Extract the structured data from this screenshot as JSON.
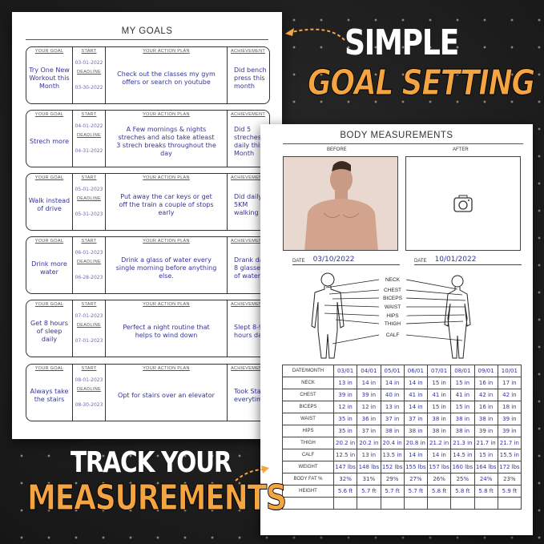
{
  "headline_top": {
    "line1": "SIMPLE",
    "line2": "GOAL SETTING"
  },
  "headline_bottom": {
    "line1": "TRACK YOUR",
    "line2": "MEASUREMENTS"
  },
  "colors": {
    "accent": "#f5a442",
    "background": "#1d1d1d",
    "handwriting": "#34349a"
  },
  "goals_page": {
    "title": "MY GOALS",
    "headers": {
      "goal": "YOUR GOAL",
      "start": "START",
      "deadline": "DEADLINE",
      "plan": "YOUR ACTION PLAN",
      "achievement": "ACHIEVEMENT"
    },
    "rows": [
      {
        "goal": "Try One New Workout this Month",
        "start": "03-01-2022",
        "deadline": "03-30-2022",
        "plan": "Check out the classes my gym offers or search on youtube",
        "achievement": "Did bench press this month"
      },
      {
        "goal": "Strech more",
        "start": "04-01-2022",
        "deadline": "04-31-2022",
        "plan": "A Few mornings & nights streches and also take atleast 3 strech breaks throughout the day",
        "achievement": "Did 5 streches daily this Month"
      },
      {
        "goal": "Walk instead of drive",
        "start": "05-01-2023",
        "deadline": "05-31-2023",
        "plan": "Put away the car keys or get off the train a couple of stops early",
        "achievement": "Did daily 5KM walking"
      },
      {
        "goal": "Drink more water",
        "start": "06-01-2023",
        "deadline": "06-28-2023",
        "plan": "Drink a glass of water every single morning before anything else.",
        "achievement": "Drank da 8 glasses of water"
      },
      {
        "goal": "Get 8 hours of sleep daily",
        "start": "07-01-2023",
        "deadline": "07-01-2023",
        "plan": "Perfect a night routine that helps to wind down",
        "achievement": "Slept 8-9 hours dail"
      },
      {
        "goal": "Always take the stairs",
        "start": "08-01-2023",
        "deadline": "08-30-2023",
        "plan": "Opt for stairs over an elevator",
        "achievement": "Took Sta everytime"
      }
    ]
  },
  "measurements_page": {
    "title": "BODY MEASUREMENTS",
    "before_label": "BEFORE",
    "after_label": "AFTER",
    "date_label": "DATE",
    "before_date": "03/10/2022",
    "after_date": "10/01/2022",
    "after_photo_icon": "camera-icon",
    "body_labels": [
      "NECK",
      "CHEST",
      "BICEPS",
      "WAIST",
      "HIPS",
      "THIGH",
      "CALF"
    ],
    "table": {
      "corner": "DATE/MONTH",
      "columns": [
        "03/01",
        "04/01",
        "05/01",
        "06/01",
        "07/01",
        "08/01",
        "09/01",
        "10/01"
      ],
      "rows": [
        {
          "label": "NECK",
          "values": [
            "13 in",
            "14 in",
            "14 in",
            "14 in",
            "15 in",
            "15 in",
            "16 in",
            "17 in"
          ]
        },
        {
          "label": "CHEST",
          "values": [
            "39 in",
            "39 in",
            "40 in",
            "41 in",
            "41 in",
            "41 in",
            "42 in",
            "42 in"
          ]
        },
        {
          "label": "BICEPS",
          "values": [
            "12 in",
            "12 in",
            "13 in",
            "14 in",
            "15 in",
            "15 in",
            "16 in",
            "18 in"
          ]
        },
        {
          "label": "WAIST",
          "values": [
            "35 in",
            "36 in",
            "37 in",
            "37 in",
            "38 in",
            "38 in",
            "38 in",
            "39 in"
          ]
        },
        {
          "label": "HIPS",
          "values": [
            "35 in",
            "37 in",
            "38 in",
            "38 in",
            "38 in",
            "38 in",
            "39 in",
            "39 in"
          ]
        },
        {
          "label": "THIGH",
          "values": [
            "20.2 in",
            "20.2 in",
            "20.4 in",
            "20.8 in",
            "21.2 in",
            "21.3 in",
            "21.7 in",
            "21.7 in"
          ]
        },
        {
          "label": "CALF",
          "values": [
            "12.5 in",
            "13 in",
            "13.5 in",
            "14 in",
            "14 in",
            "14.5 in",
            "15 in",
            "15.5 in"
          ]
        },
        {
          "label": "WEIGHT",
          "values": [
            "147 lbs",
            "148 lbs",
            "152 lbs",
            "155 lbs",
            "157 lbs",
            "160 lbs",
            "164 lbs",
            "172 lbs"
          ]
        },
        {
          "label": "BODY FAT %",
          "values": [
            "32%",
            "31%",
            "29%",
            "27%",
            "26%",
            "25%",
            "24%",
            "23%"
          ]
        },
        {
          "label": "HEIGHT",
          "values": [
            "5.6 ft",
            "5.7 ft",
            "5.7 ft",
            "5.7 ft",
            "5.8 ft",
            "5.8 ft",
            "5.8 ft",
            "5.9 ft"
          ]
        },
        {
          "label": "",
          "values": [
            "",
            "",
            "",
            "",
            "",
            "",
            "",
            ""
          ]
        }
      ]
    }
  }
}
